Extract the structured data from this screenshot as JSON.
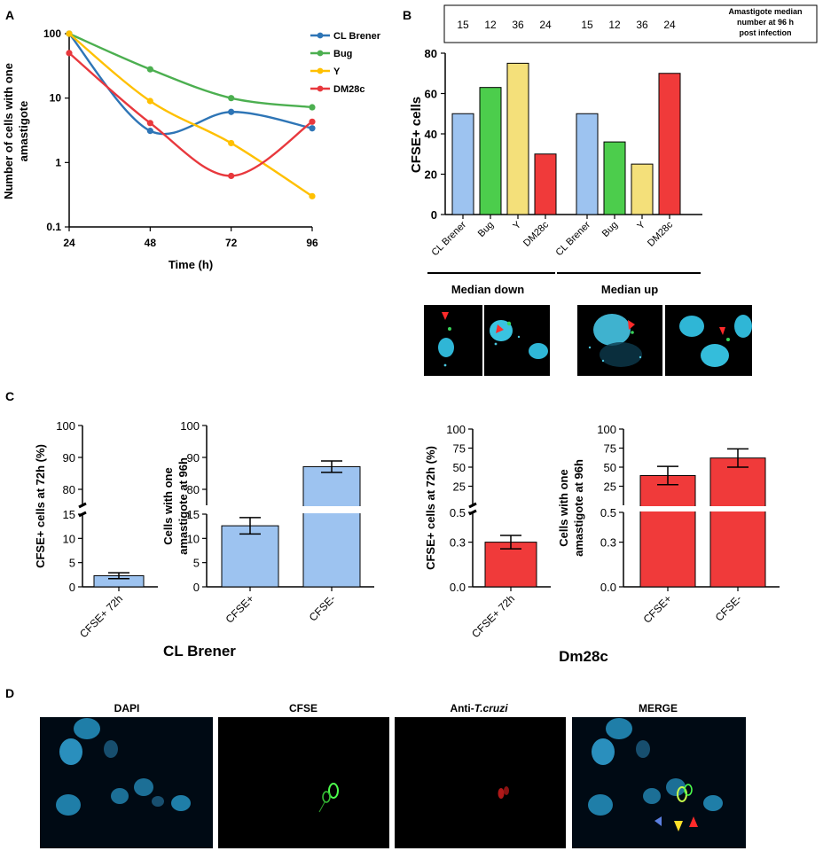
{
  "panels": {
    "A": "A",
    "B": "B",
    "C": "C",
    "D": "D"
  },
  "chart_data": [
    {
      "id": "A",
      "type": "line",
      "ylabel": "Number of cells with one amastigote",
      "ylabel_lines": [
        "Number of cells with one",
        "amastigote"
      ],
      "xlabel": "Time (h)",
      "x": [
        24,
        48,
        72,
        96
      ],
      "x_ticks": [
        "24",
        "48",
        "72",
        "96"
      ],
      "y_scale": "log",
      "ylim": [
        0.1,
        100
      ],
      "y_ticks": [
        "0.1",
        "1",
        "10",
        "100"
      ],
      "series": [
        {
          "name": "CL Brener",
          "color": "#2e75b6",
          "values": [
            100,
            3.1,
            6.1,
            3.4
          ]
        },
        {
          "name": "Bug",
          "color": "#4caf50",
          "values": [
            100,
            28,
            10,
            7.2
          ]
        },
        {
          "name": "Y",
          "color": "#ffc000",
          "values": [
            100,
            9,
            2,
            0.3
          ]
        },
        {
          "name": "DM28c",
          "color": "#e8383d",
          "values": [
            50,
            4.1,
            0.62,
            4.3
          ]
        }
      ]
    },
    {
      "id": "B",
      "type": "bar",
      "ylabel": "CFSE+ cells",
      "ylim": [
        0,
        80
      ],
      "y_ticks": [
        "0",
        "20",
        "40",
        "60",
        "80"
      ],
      "header_label_lines": [
        "Amastigote median",
        "number at 96 h",
        "post infection"
      ],
      "groups": [
        {
          "name": "Median down",
          "categories": [
            "CL Brener",
            "Bug",
            "Y",
            "DM28c"
          ],
          "values": [
            50,
            63,
            75,
            30
          ],
          "medians": [
            "15",
            "12",
            "36",
            "24"
          ]
        },
        {
          "name": "Median up",
          "categories": [
            "CL Brener",
            "Bug",
            "Y",
            "DM28c"
          ],
          "values": [
            50,
            36,
            25,
            70
          ],
          "medians": [
            "15",
            "12",
            "36",
            "24"
          ]
        }
      ],
      "colors": [
        "#9dc3f0",
        "#4ccd4c",
        "#f4e07a",
        "#f03a3a"
      ]
    },
    {
      "id": "C1",
      "type": "bar",
      "ylabel": "CFSE+ cells at 72h (%)",
      "categories": [
        "CFSE+ 72h"
      ],
      "values": [
        2.3
      ],
      "error": [
        0.6
      ],
      "y_ticks_bottom": [
        "0",
        "5",
        "10",
        "15"
      ],
      "y_ticks_top": [
        "80",
        "90",
        "100"
      ],
      "color": "#9dc3f0"
    },
    {
      "id": "C2",
      "type": "bar",
      "ylabel_lines": [
        "Cells with one",
        "amastigote at 96h"
      ],
      "categories": [
        "CFSE+",
        "CFSE-"
      ],
      "values": [
        12.6,
        87.1
      ],
      "error": [
        1.7,
        1.8
      ],
      "y_ticks_bottom": [
        "0",
        "5",
        "10",
        "15"
      ],
      "y_ticks_top": [
        "80",
        "90",
        "100"
      ],
      "color": "#9dc3f0",
      "strain": "CL Brener"
    },
    {
      "id": "C3",
      "type": "bar",
      "ylabel": "CFSE+ cells at 72h (%)",
      "categories": [
        "CFSE+ 72h"
      ],
      "values": [
        0.3
      ],
      "error": [
        0.045
      ],
      "y_ticks_bottom": [
        "0.0",
        "0.3",
        "0.5"
      ],
      "y_ticks_top": [
        "25",
        "50",
        "75",
        "100"
      ],
      "color": "#f03a3a"
    },
    {
      "id": "C4",
      "type": "bar",
      "ylabel_lines": [
        "Cells with one",
        "amastigote at 96h"
      ],
      "categories": [
        "CFSE+",
        "CFSE-"
      ],
      "values": [
        39,
        62
      ],
      "error": [
        12,
        12
      ],
      "y_ticks_bottom": [
        "0.0",
        "0.3",
        "0.5"
      ],
      "y_ticks_top": [
        "25",
        "50",
        "75",
        "100"
      ],
      "color": "#f03a3a",
      "strain": "Dm28c"
    }
  ],
  "panel_d": {
    "titles": [
      "DAPI",
      "CFSE",
      "Anti-",
      "MERGE"
    ],
    "anti_italic": "T.cruzi"
  }
}
